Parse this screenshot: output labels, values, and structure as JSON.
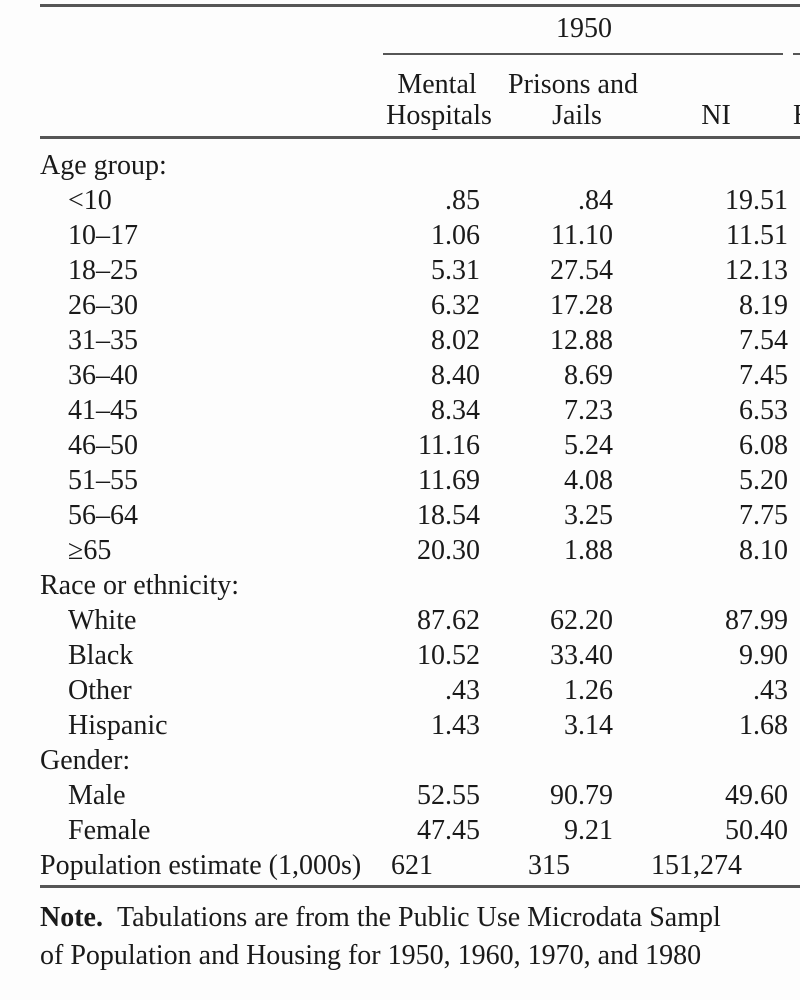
{
  "header": {
    "year": "1950",
    "columns": {
      "col1_line1": "Mental",
      "col1_line2": "Hospitals",
      "col2_line1": "Prisons and",
      "col2_line2": "Jails",
      "col3": "NI",
      "next_group_fragment": "H"
    }
  },
  "table": {
    "rows": [
      {
        "label": "Age group:",
        "indent": 0,
        "values": [
          "",
          "",
          ""
        ]
      },
      {
        "label": "<10",
        "indent": 1,
        "values": [
          ".85",
          ".84",
          "19.51"
        ]
      },
      {
        "label": "10–17",
        "indent": 1,
        "values": [
          "1.06",
          "11.10",
          "11.51"
        ]
      },
      {
        "label": "18–25",
        "indent": 1,
        "values": [
          "5.31",
          "27.54",
          "12.13"
        ]
      },
      {
        "label": "26–30",
        "indent": 1,
        "values": [
          "6.32",
          "17.28",
          "8.19"
        ]
      },
      {
        "label": "31–35",
        "indent": 1,
        "values": [
          "8.02",
          "12.88",
          "7.54"
        ]
      },
      {
        "label": "36–40",
        "indent": 1,
        "values": [
          "8.40",
          "8.69",
          "7.45"
        ]
      },
      {
        "label": "41–45",
        "indent": 1,
        "values": [
          "8.34",
          "7.23",
          "6.53"
        ]
      },
      {
        "label": "46–50",
        "indent": 1,
        "values": [
          "11.16",
          "5.24",
          "6.08"
        ]
      },
      {
        "label": "51–55",
        "indent": 1,
        "values": [
          "11.69",
          "4.08",
          "5.20"
        ]
      },
      {
        "label": "56–64",
        "indent": 1,
        "values": [
          "18.54",
          "3.25",
          "7.75"
        ]
      },
      {
        "label": "≥65",
        "indent": 1,
        "values": [
          "20.30",
          "1.88",
          "8.10"
        ]
      },
      {
        "label": "Race or ethnicity:",
        "indent": 0,
        "values": [
          "",
          "",
          ""
        ]
      },
      {
        "label": "White",
        "indent": 1,
        "values": [
          "87.62",
          "62.20",
          "87.99"
        ]
      },
      {
        "label": "Black",
        "indent": 1,
        "values": [
          "10.52",
          "33.40",
          "9.90"
        ]
      },
      {
        "label": "Other",
        "indent": 1,
        "values": [
          ".43",
          "1.26",
          ".43"
        ]
      },
      {
        "label": "Hispanic",
        "indent": 1,
        "values": [
          "1.43",
          "3.14",
          "1.68"
        ]
      },
      {
        "label": "Gender:",
        "indent": 0,
        "values": [
          "",
          "",
          ""
        ]
      },
      {
        "label": "Male",
        "indent": 1,
        "values": [
          "52.55",
          "90.79",
          "49.60"
        ]
      },
      {
        "label": "Female",
        "indent": 1,
        "values": [
          "47.45",
          "9.21",
          "50.40"
        ]
      },
      {
        "label": "Population estimate (1,000s)",
        "indent": 0,
        "values": [
          "621",
          "315",
          "151,274"
        ],
        "left_aligned": true
      }
    ]
  },
  "note": {
    "label": "Note.",
    "line1": "Tabulations are from the Public Use Microdata Sampl",
    "line2": "of Population and Housing for 1950, 1960, 1970, and 1980"
  },
  "colors": {
    "text": "#1a1a1a",
    "rule": "#565656",
    "background": "#fdfdfd"
  }
}
